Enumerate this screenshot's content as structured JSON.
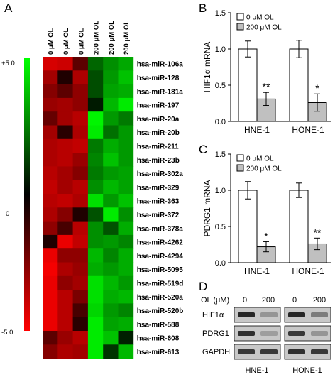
{
  "panels": {
    "A": "A",
    "B": "B",
    "C": "C",
    "D": "D"
  },
  "heatmap": {
    "scale_labels": [
      "+5.0",
      "0",
      "-5.0"
    ],
    "conditions": [
      "0 μM OL",
      "0 μM OL",
      "0 μM OL",
      "200 μM OL",
      "200 μM OL",
      "200 μM OL"
    ],
    "genes": [
      "hsa-miR-106a",
      "hsa-miR-128",
      "hsa-miR-181a",
      "hsa-miR-197",
      "hsa-miR-20a",
      "hsa-miR-20b",
      "hsa-miR-211",
      "hsa-miR-23b",
      "hsa-miR-302a",
      "hsa-miR-329",
      "hsa-miR-363",
      "hsa-miR-372",
      "hsa-miR-378a",
      "hsa-miR-4262",
      "hsa-miR-4294",
      "hsa-miR-5095",
      "hsa-miR-519d",
      "hsa-miR-520a",
      "hsa-miR-520b",
      "hsa-miR-588",
      "hsa-miR-608",
      "hsa-miR-613"
    ],
    "values": [
      [
        -4.2,
        -4.0,
        -1.8,
        2.0,
        2.8,
        3.3
      ],
      [
        -3.2,
        -0.6,
        -3.4,
        1.5,
        3.0,
        3.8
      ],
      [
        -2.6,
        -1.8,
        -2.8,
        1.5,
        3.2,
        3.4
      ],
      [
        -3.0,
        -3.2,
        -2.8,
        0.5,
        3.6,
        4.6
      ],
      [
        -2.0,
        -3.2,
        -3.6,
        4.8,
        3.0,
        2.4
      ],
      [
        -3.2,
        -0.8,
        -3.4,
        4.6,
        2.2,
        3.0
      ],
      [
        -3.4,
        -3.6,
        -3.8,
        2.4,
        3.4,
        3.0
      ],
      [
        -3.4,
        -3.6,
        -3.0,
        2.6,
        3.8,
        3.0
      ],
      [
        -3.6,
        -3.2,
        -2.6,
        2.4,
        3.0,
        3.2
      ],
      [
        -3.8,
        -3.2,
        -3.6,
        2.8,
        3.6,
        3.2
      ],
      [
        -3.6,
        -3.8,
        -3.4,
        4.4,
        3.0,
        3.8
      ],
      [
        -3.4,
        -2.6,
        -0.6,
        1.6,
        4.6,
        2.8
      ],
      [
        -2.8,
        -1.4,
        -3.6,
        2.8,
        1.6,
        3.4
      ],
      [
        -0.6,
        -4.6,
        -3.8,
        2.8,
        3.0,
        2.6
      ],
      [
        -4.6,
        -2.8,
        -2.8,
        3.6,
        2.6,
        3.4
      ],
      [
        -4.8,
        -3.4,
        -3.0,
        3.4,
        3.0,
        3.4
      ],
      [
        -4.6,
        -2.8,
        -3.2,
        4.4,
        3.6,
        3.0
      ],
      [
        -4.6,
        -3.6,
        -2.4,
        4.4,
        3.4,
        3.6
      ],
      [
        -4.6,
        -3.6,
        -1.4,
        4.2,
        3.0,
        2.6
      ],
      [
        -4.6,
        -3.6,
        -0.8,
        4.6,
        3.2,
        3.4
      ],
      [
        -1.8,
        -3.0,
        -3.6,
        4.6,
        3.8,
        0.6
      ],
      [
        -2.6,
        -3.4,
        -3.2,
        4.6,
        1.0,
        3.6
      ]
    ]
  },
  "chart_data": [
    {
      "type": "bar",
      "panel": "B",
      "categories": [
        "HNE-1",
        "HONE-1"
      ],
      "series": [
        {
          "name": "0 μM OL",
          "values": [
            1.0,
            1.0
          ],
          "errors": [
            0.11,
            0.12
          ],
          "color": "#ffffff"
        },
        {
          "name": "200 μM OL",
          "values": [
            0.31,
            0.26
          ],
          "errors": [
            0.09,
            0.12
          ],
          "color": "#c0c0c0"
        }
      ],
      "significance": [
        "**",
        "*"
      ],
      "ylabel": "HIF1α mRNA",
      "ylim": [
        0,
        1.5
      ],
      "yticks": [
        "0.0",
        "0.5",
        "1.0",
        "1.5"
      ],
      "legend": "top-left",
      "grid": false
    },
    {
      "type": "bar",
      "panel": "C",
      "categories": [
        "HNE-1",
        "HONE-1"
      ],
      "series": [
        {
          "name": "0 μM OL",
          "values": [
            1.0,
            1.0
          ],
          "errors": [
            0.12,
            0.1
          ],
          "color": "#ffffff"
        },
        {
          "name": "200 μM OL",
          "values": [
            0.22,
            0.26
          ],
          "errors": [
            0.07,
            0.08
          ],
          "color": "#c0c0c0"
        }
      ],
      "significance": [
        "*",
        "**"
      ],
      "ylabel": "PDRG1 mRNA",
      "ylim": [
        0,
        1.5
      ],
      "yticks": [
        "0.0",
        "0.5",
        "1.0",
        "1.5"
      ],
      "legend": "top-left",
      "grid": false
    }
  ],
  "blot": {
    "header_label": "OL (μM)",
    "doses": [
      "0",
      "200",
      "0",
      "200"
    ],
    "proteins": [
      "HIF1α",
      "PDRG1",
      "GAPDH"
    ],
    "cell_lines": [
      "HNE-1",
      "HONE-1"
    ],
    "band_intensity": [
      [
        0.95,
        0.3,
        0.95,
        0.45
      ],
      [
        0.9,
        0.25,
        0.85,
        0.3
      ],
      [
        0.85,
        0.85,
        0.9,
        0.85
      ]
    ]
  }
}
